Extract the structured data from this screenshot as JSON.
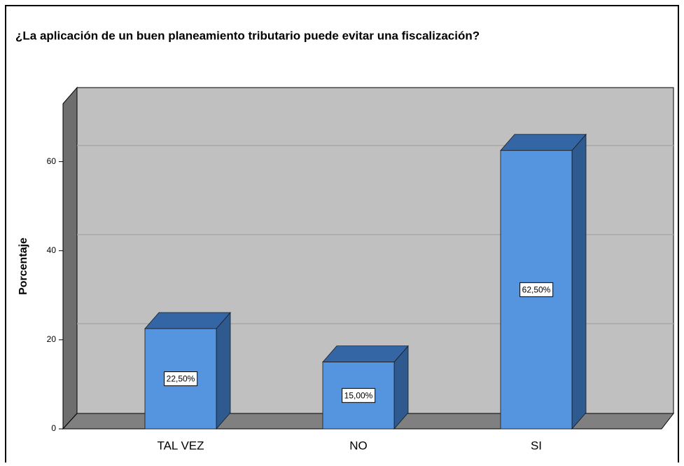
{
  "chart_data": {
    "type": "bar",
    "title": "¿La aplicación de un buen planeamiento tributario puede evitar una fiscalización?",
    "y_label": "Porcentaje",
    "categories": [
      "TAL VEZ",
      "NO",
      "SI"
    ],
    "values": [
      22.5,
      15,
      62.5
    ],
    "value_labels": [
      "22,50%",
      "15,00%",
      "62,50%"
    ],
    "color": "#5595e0",
    "ylim": [
      0,
      73
    ],
    "yticks": [
      0,
      20,
      40,
      60
    ],
    "grid": true
  }
}
